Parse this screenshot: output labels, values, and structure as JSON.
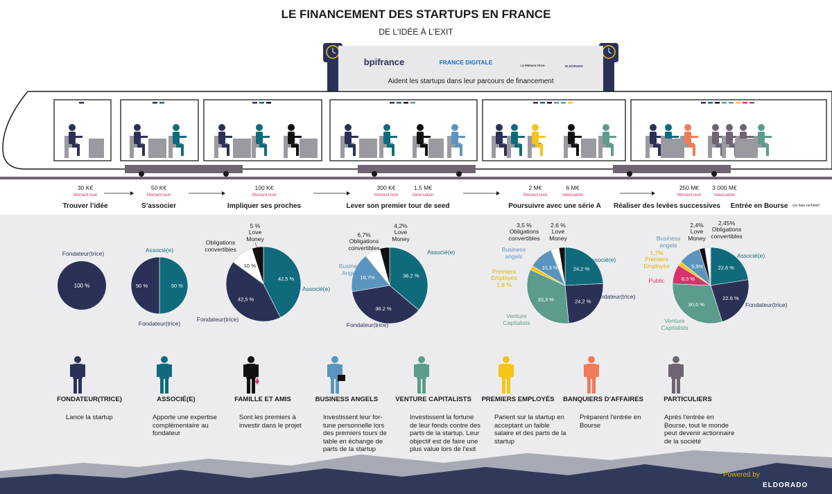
{
  "header": {
    "title": "LE FINANCEMENT DES STARTUPS EN FRANCE",
    "subtitle": "DE L'IDÉE À L'EXIT"
  },
  "banner": {
    "logos": [
      "bpifrance",
      "FRANCE DIGITALE",
      "LA FRENCH TECH",
      "ELDORADO"
    ],
    "tagline": "Aident les startups dans leur parcours de financement"
  },
  "timeline": [
    {
      "amounts": [
        {
          "value": "30 K€",
          "note": "Montant levé"
        }
      ],
      "stage": "Trouver l’idée"
    },
    {
      "amounts": [
        {
          "value": "50 K€",
          "note": "Montant levé"
        }
      ],
      "stage": "S’associer"
    },
    {
      "amounts": [
        {
          "value": "100 K€",
          "note": "Montant levé"
        }
      ],
      "stage": "Impliquer ses proches"
    },
    {
      "amounts": [
        {
          "value": "300 K€",
          "note": "Montant levé"
        },
        {
          "value": "1,5 M€",
          "note": "Valorisation"
        }
      ],
      "stage": "Lever son premier tour de seed"
    },
    {
      "amounts": [
        {
          "value": "2 M€",
          "note": "Montant levé"
        },
        {
          "value": "6 M€",
          "note": "Valorisation"
        }
      ],
      "stage": "Poursuivre avec une série A"
    },
    {
      "amounts": [
        {
          "value": "250 M€",
          "note": "Montant levé"
        }
      ],
      "stage": "Réaliser des levées successives"
    },
    {
      "amounts": [
        {
          "value": "3 000 M€",
          "note": "Valorisation"
        }
      ],
      "stage": "Entrée en Bourse",
      "stage_note": "(se faire racheter)"
    }
  ],
  "colors": {
    "navy": "#2b3156",
    "teal": "#0f6b7c",
    "white": "#ffffff",
    "black": "#111111",
    "ba_blue": "#5b95bf",
    "vc_green": "#5c9c8c",
    "employee_yellow": "#f5c518",
    "banker_red": "#d6336c",
    "public_grey": "#6e6472",
    "pink": "#d63a6a",
    "mountain": "#2f3a5b"
  },
  "chart_data": [
    {
      "type": "pie",
      "slices": [
        {
          "name": "Fondateur(trice)",
          "value": 100,
          "label": "100 %",
          "color": "#2b3156"
        }
      ]
    },
    {
      "type": "pie",
      "slices": [
        {
          "name": "Associé(e)",
          "value": 50,
          "label": "50 %",
          "color": "#0f6b7c"
        },
        {
          "name": "Fondateur(trice)",
          "value": 50,
          "label": "50 %",
          "color": "#2b3156"
        }
      ]
    },
    {
      "type": "pie",
      "slices": [
        {
          "name": "Associé(e)",
          "value": 42.5,
          "label": "42,5 %",
          "color": "#0f6b7c"
        },
        {
          "name": "Fondateur(trice)",
          "value": 42.5,
          "label": "42,5 %",
          "color": "#2b3156"
        },
        {
          "name": "Obligations convertibles",
          "value": 10,
          "label": "10 %",
          "color": "#ffffff"
        },
        {
          "name": "Love Money",
          "value": 5,
          "label": "5 %",
          "color": "#111111"
        }
      ]
    },
    {
      "type": "pie",
      "slices": [
        {
          "name": "Associé(e)",
          "value": 36.2,
          "label": "36.2 %",
          "color": "#0f6b7c"
        },
        {
          "name": "Fondateur(trice)",
          "value": 36.2,
          "label": "36.2 %",
          "color": "#2b3156"
        },
        {
          "name": "Business Angels",
          "value": 16.7,
          "label": "16,7%",
          "color": "#5b95bf"
        },
        {
          "name": "Obligations convertibles",
          "value": 6.7,
          "label": "6,7%",
          "color": "#ffffff"
        },
        {
          "name": "Love Money",
          "value": 4.2,
          "label": "4,2%",
          "color": "#111111"
        }
      ]
    },
    {
      "type": "pie",
      "slices": [
        {
          "name": "Associé(e)",
          "value": 24.2,
          "label": "24,2 %",
          "color": "#0f6b7c"
        },
        {
          "name": "Fondateur(trice)",
          "value": 24.2,
          "label": "24,2 %",
          "color": "#2b3156"
        },
        {
          "name": "Venture Capitalists",
          "value": 33.3,
          "label": "33,3 %",
          "color": "#5c9c8c"
        },
        {
          "name": "Premiers Employés",
          "value": 1.8,
          "label": "1,8 %",
          "color": "#f5c518"
        },
        {
          "name": "Business angels",
          "value": 10.3,
          "label": "10,3 %",
          "color": "#5b95bf"
        },
        {
          "name": "Obligations convertibles",
          "value": 3.5,
          "label": "3,5 %",
          "color": "#ffffff"
        },
        {
          "name": "Love Money",
          "value": 2.6,
          "label": "2,6 %",
          "color": "#111111"
        }
      ]
    },
    {
      "type": "pie",
      "slices": [
        {
          "name": "Associé(e)",
          "value": 22.6,
          "label": "22.6 %",
          "color": "#0f6b7c"
        },
        {
          "name": "Fondateur(trice)",
          "value": 22.6,
          "label": "22.6 %",
          "color": "#2b3156"
        },
        {
          "name": "Venture Capitalists",
          "value": 30.6,
          "label": "30,6 %",
          "color": "#5c9c8c"
        },
        {
          "name": "Public",
          "value": 8.3,
          "label": "8,3 %",
          "color": "#d6336c"
        },
        {
          "name": "Premiers Employés",
          "value": 1.7,
          "label": "1,7 %",
          "color": "#f5c518"
        },
        {
          "name": "Business angels",
          "value": 9.5,
          "label": "9,5%",
          "color": "#5b95bf"
        },
        {
          "name": "Love Money",
          "value": 2.4,
          "label": "2,4 %",
          "color": "#111111"
        },
        {
          "name": "Obligations convertibles",
          "value": 2.45,
          "label": "2,45 %",
          "color": "#ffffff"
        }
      ]
    }
  ],
  "pie_labels": [
    [
      {
        "text": "Fondateur(trice)",
        "color": "#2b3156"
      }
    ],
    [
      {
        "text": "Associé(e)",
        "color": "#0f6b7c"
      },
      {
        "text": "Fondateur(trice)",
        "color": "#2b3156"
      }
    ],
    [
      {
        "text": "5 %",
        "color": "#1a1a1a"
      },
      {
        "text": "Love",
        "color": "#1a1a1a"
      },
      {
        "text": "Money",
        "color": "#1a1a1a"
      },
      {
        "text": "Obligations",
        "color": "#1a1a1a"
      },
      {
        "text": "convertibles",
        "color": "#1a1a1a"
      },
      {
        "text": "Associé(e)",
        "color": "#0f6b7c"
      },
      {
        "text": "Fondateur(trice)",
        "color": "#2b3156"
      }
    ],
    [
      {
        "text": "6,7%",
        "color": "#1a1a1a"
      },
      {
        "text": "Obligations",
        "color": "#1a1a1a"
      },
      {
        "text": "convertibles",
        "color": "#1a1a1a"
      },
      {
        "text": "4,2%",
        "color": "#1a1a1a"
      },
      {
        "text": "Love",
        "color": "#1a1a1a"
      },
      {
        "text": "Money",
        "color": "#1a1a1a"
      },
      {
        "text": "Associé(e)",
        "color": "#0f6b7c"
      },
      {
        "text": "Business",
        "color": "#5b95bf"
      },
      {
        "text": "Angels",
        "color": "#5b95bf"
      },
      {
        "text": "Fondateur(trice)",
        "color": "#2b3156"
      }
    ],
    [
      {
        "text": "3,5 %",
        "color": "#1a1a1a"
      },
      {
        "text": "Obligations",
        "color": "#1a1a1a"
      },
      {
        "text": "convertibles",
        "color": "#1a1a1a"
      },
      {
        "text": "2,6 %",
        "color": "#1a1a1a"
      },
      {
        "text": "Love",
        "color": "#1a1a1a"
      },
      {
        "text": "Money",
        "color": "#1a1a1a"
      },
      {
        "text": "Business",
        "color": "#5b95bf"
      },
      {
        "text": "angels",
        "color": "#5b95bf"
      },
      {
        "text": "Associé(e)",
        "color": "#0f6b7c"
      },
      {
        "text": "Premiers",
        "color": "#e0b300"
      },
      {
        "text": "Employés",
        "color": "#e0b300"
      },
      {
        "text": "1,8 %",
        "color": "#e0b300"
      },
      {
        "text": "Fondateur(trice)",
        "color": "#2b3156"
      },
      {
        "text": "Venture",
        "color": "#5c9c8c"
      },
      {
        "text": "Capitalists",
        "color": "#5c9c8c"
      }
    ],
    [
      {
        "text": "2,45%",
        "color": "#1a1a1a"
      },
      {
        "text": "Obligations",
        "color": "#1a1a1a"
      },
      {
        "text": "convertibles",
        "color": "#1a1a1a"
      },
      {
        "text": "2,4%",
        "color": "#1a1a1a"
      },
      {
        "text": "Love",
        "color": "#1a1a1a"
      },
      {
        "text": "Money",
        "color": "#1a1a1a"
      },
      {
        "text": "Business",
        "color": "#5b95bf"
      },
      {
        "text": "angels",
        "color": "#5b95bf"
      },
      {
        "text": "1,7%",
        "color": "#e0b300"
      },
      {
        "text": "Premiers",
        "color": "#e0b300"
      },
      {
        "text": "Employés",
        "color": "#e0b300"
      },
      {
        "text": "Associé(e)",
        "color": "#0f6b7c"
      },
      {
        "text": "Public",
        "color": "#d6336c"
      },
      {
        "text": "Fondateur(trice)",
        "color": "#2b3156"
      },
      {
        "text": "Venture",
        "color": "#5c9c8c"
      },
      {
        "text": "Capitalists",
        "color": "#5c9c8c"
      }
    ]
  ],
  "roles": [
    {
      "title": "FONDATEUR(TRICE)",
      "description": "Lance la startup",
      "color": "#2b3156"
    },
    {
      "title": "ASSOCIÉ(E)",
      "description": "Apporte une expertise complémentaire au fondateur",
      "color": "#0f6b7c"
    },
    {
      "title": "FAMILLE ET AMIS",
      "description": "Sont les premiers à investir dans le projet",
      "color": "#111111"
    },
    {
      "title": "BUSINESS ANGELS",
      "description": "Investissent leur for- tune personnelle lors des premiers tours de table en échange de parts de la startup",
      "color": "#5b95bf"
    },
    {
      "title": "VENTURE CAPITALISTS",
      "description": "Investissent la fortune de leur fonds contre des parts de la startup. Leur objectif est de faire une plus value lors de l'exit",
      "color": "#5c9c8c"
    },
    {
      "title": "PREMIERS EMPLOYÉS",
      "description": "Parient sur la startup en acceptant un faible salaire et des parts de la startup",
      "color": "#f5c518"
    },
    {
      "title": "BANQUIERS D'AFFAIRES",
      "description": "Préparent l'entrée en Bourse",
      "color": "#f07b5a"
    },
    {
      "title": "PARTICULIERS",
      "description": "Après l'entrée en Bourse, tout le monde peut devenir actionnaire de la société",
      "color": "#6e6472"
    }
  ],
  "footer": {
    "powered": "Powered by",
    "brand": "ELDORADO"
  }
}
